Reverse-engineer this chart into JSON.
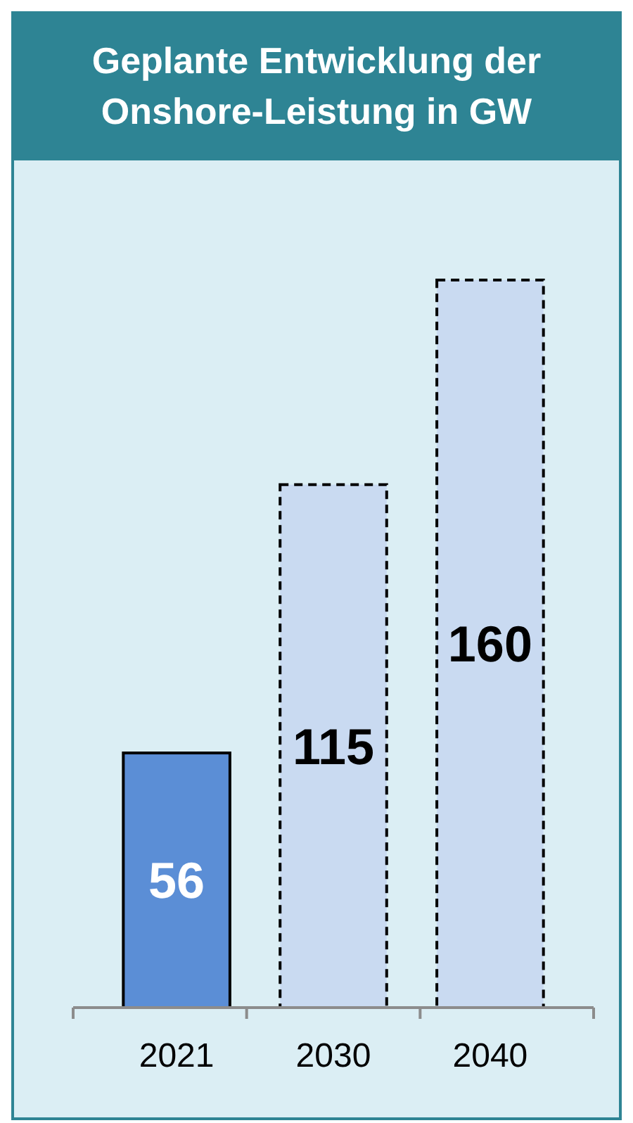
{
  "chart_data": {
    "type": "bar",
    "title": "Geplante Entwicklung der Onshore-Leistung in GW",
    "categories": [
      "2021",
      "2030",
      "2040"
    ],
    "series": [
      {
        "color": "#5b8ed6",
        "values": [
          56,
          null,
          null
        ],
        "line_style": "solid"
      },
      {
        "color": "#c9daf1",
        "values": [
          null,
          115,
          160
        ],
        "line_style": "dashed"
      }
    ],
    "data_labels": true
  }
}
